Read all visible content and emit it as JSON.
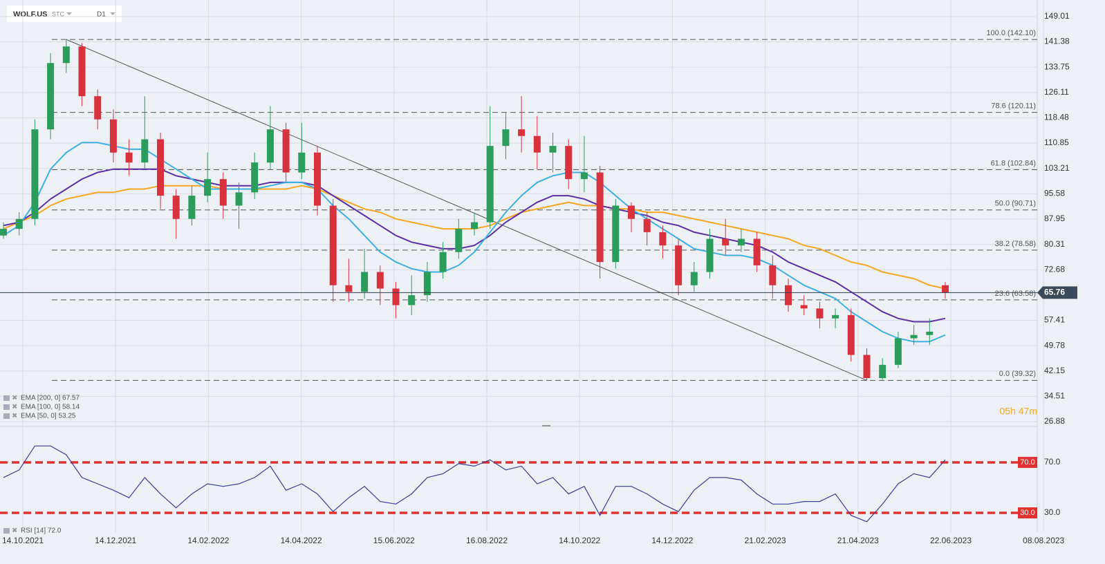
{
  "header": {
    "symbol": "WOLF.US",
    "market": "STC",
    "interval": "D1"
  },
  "chart_data": [
    {
      "type": "candlestick",
      "xticks": [
        "14.10.2021",
        "14.12.2021",
        "14.02.2022",
        "14.04.2022",
        "15.06.2022",
        "16.08.2022",
        "14.10.2022",
        "14.12.2022",
        "21.02.2023",
        "21.04.2023",
        "22.06.2023",
        "08.08.2023"
      ],
      "open": [
        83,
        85,
        88,
        115,
        135,
        140,
        125,
        118,
        108,
        105,
        112,
        95,
        88,
        95,
        100,
        92,
        96,
        105,
        115,
        102,
        108,
        92,
        68,
        66,
        72,
        67,
        62,
        65,
        72,
        78,
        85,
        87,
        110,
        115,
        113,
        108,
        110,
        100,
        102,
        75,
        92,
        88,
        84,
        80,
        68,
        72,
        82,
        80,
        82,
        74,
        68,
        62,
        61,
        58,
        59,
        47,
        40,
        44,
        52,
        53,
        68
      ],
      "high": [
        87,
        90,
        118,
        138,
        142.1,
        141,
        127,
        121,
        112,
        125,
        114,
        97,
        98,
        108,
        102,
        99,
        108,
        122,
        117,
        117,
        110,
        94,
        76,
        79,
        74,
        69,
        71,
        75,
        81,
        88,
        90,
        122,
        120,
        125,
        119,
        114,
        112,
        113,
        104,
        94,
        93,
        90,
        86,
        82,
        75,
        85,
        88,
        85,
        84,
        77,
        70,
        65,
        63,
        61,
        61,
        49,
        46,
        54,
        56,
        58,
        69
      ],
      "low": [
        82,
        83,
        86,
        112,
        132,
        122,
        115,
        105,
        101,
        103,
        91,
        82,
        86,
        93,
        88,
        85,
        94,
        103,
        99,
        100,
        89,
        63,
        63,
        64,
        62,
        58,
        59,
        63,
        70,
        76,
        83,
        85,
        106,
        108,
        103,
        102,
        97,
        96,
        70,
        73,
        84,
        80,
        76,
        65,
        66,
        70,
        77,
        78,
        72,
        64,
        60,
        59,
        55,
        55,
        45,
        39.32,
        39.5,
        43,
        50,
        50,
        64
      ],
      "close": [
        85,
        88,
        115,
        135,
        140,
        125,
        118,
        108,
        105,
        112,
        95,
        88,
        95,
        100,
        92,
        96,
        105,
        115,
        102,
        108,
        92,
        68,
        66,
        72,
        67,
        62,
        65,
        72,
        78,
        85,
        87,
        110,
        115,
        113,
        108,
        110,
        100,
        102,
        75,
        92,
        88,
        84,
        80,
        68,
        72,
        82,
        80,
        82,
        74,
        68,
        62,
        61,
        58,
        59,
        47,
        40,
        44,
        52,
        53,
        54,
        65.76
      ],
      "up_color": "#2a9d5c",
      "down_color": "#d8323f",
      "series": [
        {
          "name": "EMA [200, 0] 67.57",
          "color": "#f5a623",
          "values": [
            85,
            87,
            89,
            92,
            94,
            95,
            96,
            96,
            97,
            97,
            98,
            98,
            98,
            98,
            97,
            97,
            97,
            97,
            97,
            98,
            97,
            95,
            93,
            91,
            90,
            88,
            87,
            86,
            85,
            85,
            85,
            86,
            88,
            90,
            91,
            92,
            93,
            92,
            92,
            91,
            91,
            90,
            90,
            89,
            88,
            87,
            86,
            85,
            84,
            83,
            82,
            80,
            79,
            77,
            75,
            74,
            72,
            71,
            70,
            68,
            67
          ]
        },
        {
          "name": "EMA [100, 0] 58.14",
          "color": "#5b2fa6",
          "values": [
            86,
            87,
            90,
            94,
            97,
            100,
            102,
            103,
            103,
            103,
            103,
            101,
            100,
            99,
            98,
            98,
            98,
            99,
            99,
            99,
            98,
            95,
            92,
            89,
            86,
            83,
            81,
            80,
            79,
            79,
            80,
            83,
            87,
            90,
            93,
            95,
            95,
            94,
            92,
            91,
            90,
            89,
            87,
            86,
            84,
            83,
            82,
            81,
            80,
            78,
            75,
            73,
            71,
            69,
            66,
            63,
            60,
            58,
            57,
            57,
            58
          ]
        },
        {
          "name": "EMA [50, 0] 53.25",
          "color": "#3fb0e3",
          "values": [
            83,
            86,
            93,
            103,
            108,
            111,
            111,
            110,
            109,
            109,
            106,
            103,
            100,
            97,
            97,
            97,
            97,
            98,
            99,
            99,
            97,
            92,
            88,
            83,
            78,
            75,
            73,
            72,
            72,
            74,
            78,
            84,
            90,
            95,
            99,
            101,
            102,
            102,
            99,
            95,
            91,
            88,
            85,
            82,
            79,
            78,
            77,
            77,
            76,
            74,
            71,
            68,
            66,
            64,
            60,
            57,
            54,
            52,
            51,
            51,
            53
          ]
        }
      ],
      "ylim": [
        25.84,
        154.0
      ],
      "yticks": [
        149.01,
        141.38,
        133.75,
        126.11,
        118.48,
        110.85,
        103.21,
        95.58,
        87.95,
        80.31,
        72.68,
        57.41,
        49.78,
        42.15,
        34.51,
        26.88
      ],
      "grid": true,
      "fib_levels": [
        {
          "value": 142.1,
          "label": "100.0 (142.10)"
        },
        {
          "value": 120.11,
          "label": "78.6 (120.11)"
        },
        {
          "value": 102.84,
          "label": "61.8 (102.84)"
        },
        {
          "value": 90.71,
          "label": "50.0 (90.71)"
        },
        {
          "value": 78.58,
          "label": "38.2 (78.58)"
        },
        {
          "value": 63.58,
          "label": "23.6 (63.58)"
        },
        {
          "value": 39.32,
          "label": "0.0 (39.32)"
        }
      ],
      "current_price": 65.76,
      "countdown": "05h 47m"
    },
    {
      "type": "line",
      "series": [
        {
          "name": "RSI [14] 72.0",
          "color": "#3a3f9a",
          "values": [
            58,
            64,
            83,
            83,
            76,
            58,
            53,
            48,
            42,
            58,
            45,
            34,
            45,
            53,
            51,
            53,
            58,
            67,
            48,
            53,
            45,
            31,
            42,
            51,
            39,
            37,
            45,
            58,
            61,
            69,
            67,
            72,
            64,
            67,
            53,
            58,
            45,
            51,
            28,
            51,
            51,
            45,
            37,
            31,
            48,
            58,
            58,
            56,
            45,
            37,
            37,
            39,
            39,
            45,
            28,
            23,
            37,
            53,
            61,
            58,
            72
          ]
        }
      ],
      "ylim": [
        14.7,
        96.8
      ],
      "yticks": [
        {
          "value": 70,
          "label": "70.0"
        },
        {
          "value": 30,
          "label": "30.0"
        }
      ],
      "threshold_color": "#e03030"
    }
  ]
}
